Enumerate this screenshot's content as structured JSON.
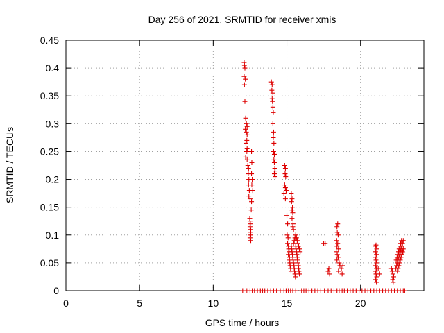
{
  "chart_data": {
    "type": "scatter",
    "title": "Day 256 of 2021, SRMTID for receiver xmis",
    "xlabel": "GPS time / hours",
    "ylabel": "SRMTID / TECUs",
    "xlim": [
      0,
      24.3
    ],
    "ylim": [
      0,
      0.45
    ],
    "x_ticks": [
      0,
      5,
      10,
      15,
      20
    ],
    "x_tick_labels": [
      "0",
      "5",
      "10",
      "15",
      "20"
    ],
    "y_ticks": [
      0,
      0.05,
      0.1,
      0.15,
      0.2,
      0.25,
      0.3,
      0.35,
      0.4,
      0.45
    ],
    "y_tick_labels": [
      "0",
      "0.05",
      "0.1",
      "0.15",
      "0.2",
      "0.25",
      "0.3",
      "0.35",
      "0.4",
      "0.45"
    ],
    "grid": true,
    "marker": "+",
    "series": [
      {
        "name": "SRMTID",
        "color": "#dd0000",
        "points": [
          [
            12.0,
            0.0
          ],
          [
            12.25,
            0.0
          ],
          [
            12.35,
            0.0
          ],
          [
            12.5,
            0.0
          ],
          [
            12.65,
            0.0
          ],
          [
            12.8,
            0.0
          ],
          [
            13.0,
            0.0
          ],
          [
            13.2,
            0.0
          ],
          [
            13.35,
            0.0
          ],
          [
            13.5,
            0.0
          ],
          [
            13.7,
            0.0
          ],
          [
            13.9,
            0.0
          ],
          [
            14.1,
            0.0
          ],
          [
            14.3,
            0.0
          ],
          [
            14.55,
            0.0
          ],
          [
            14.8,
            0.0
          ],
          [
            14.95,
            0.0
          ],
          [
            15.1,
            0.0
          ],
          [
            15.25,
            0.0
          ],
          [
            15.4,
            0.0
          ],
          [
            15.6,
            0.0
          ],
          [
            16.0,
            0.0
          ],
          [
            16.15,
            0.0
          ],
          [
            16.3,
            0.0
          ],
          [
            16.5,
            0.0
          ],
          [
            16.7,
            0.0
          ],
          [
            16.9,
            0.0
          ],
          [
            17.1,
            0.0
          ],
          [
            17.3,
            0.0
          ],
          [
            17.55,
            0.0
          ],
          [
            17.8,
            0.0
          ],
          [
            18.0,
            0.0
          ],
          [
            18.2,
            0.0
          ],
          [
            18.4,
            0.0
          ],
          [
            18.55,
            0.0
          ],
          [
            18.75,
            0.0
          ],
          [
            18.9,
            0.0
          ],
          [
            19.1,
            0.0
          ],
          [
            19.3,
            0.0
          ],
          [
            19.5,
            0.0
          ],
          [
            19.7,
            0.0
          ],
          [
            19.9,
            0.0
          ],
          [
            20.1,
            0.0
          ],
          [
            20.3,
            0.0
          ],
          [
            20.5,
            0.0
          ],
          [
            20.7,
            0.0
          ],
          [
            20.9,
            0.0
          ],
          [
            21.1,
            0.0
          ],
          [
            21.3,
            0.0
          ],
          [
            21.5,
            0.0
          ],
          [
            21.7,
            0.0
          ],
          [
            21.9,
            0.0
          ],
          [
            22.1,
            0.0
          ],
          [
            22.3,
            0.0
          ],
          [
            22.5,
            0.0
          ],
          [
            22.7,
            0.0
          ],
          [
            22.9,
            0.0
          ],
          [
            23.0,
            0.0
          ],
          [
            12.1,
            0.41
          ],
          [
            12.12,
            0.405
          ],
          [
            12.15,
            0.4
          ],
          [
            12.1,
            0.385
          ],
          [
            12.18,
            0.38
          ],
          [
            12.12,
            0.37
          ],
          [
            12.15,
            0.34
          ],
          [
            12.2,
            0.31
          ],
          [
            12.25,
            0.3
          ],
          [
            12.3,
            0.295
          ],
          [
            12.18,
            0.29
          ],
          [
            12.25,
            0.285
          ],
          [
            12.3,
            0.28
          ],
          [
            12.28,
            0.27
          ],
          [
            12.22,
            0.265
          ],
          [
            12.3,
            0.255
          ],
          [
            12.25,
            0.25
          ],
          [
            12.35,
            0.25
          ],
          [
            12.2,
            0.24
          ],
          [
            12.3,
            0.235
          ],
          [
            12.35,
            0.225
          ],
          [
            12.4,
            0.22
          ],
          [
            12.38,
            0.21
          ],
          [
            12.42,
            0.2
          ],
          [
            12.4,
            0.19
          ],
          [
            12.45,
            0.18
          ],
          [
            12.42,
            0.17
          ],
          [
            12.5,
            0.165
          ],
          [
            12.48,
            0.13
          ],
          [
            12.5,
            0.125
          ],
          [
            12.52,
            0.12
          ],
          [
            12.5,
            0.115
          ],
          [
            12.55,
            0.11
          ],
          [
            12.52,
            0.105
          ],
          [
            12.55,
            0.1
          ],
          [
            12.5,
            0.095
          ],
          [
            12.55,
            0.09
          ],
          [
            12.6,
            0.25
          ],
          [
            12.62,
            0.23
          ],
          [
            12.6,
            0.21
          ],
          [
            12.65,
            0.2
          ],
          [
            12.62,
            0.19
          ],
          [
            12.68,
            0.18
          ],
          [
            12.6,
            0.16
          ],
          [
            12.58,
            0.145
          ],
          [
            13.95,
            0.375
          ],
          [
            14.0,
            0.37
          ],
          [
            13.98,
            0.36
          ],
          [
            14.05,
            0.355
          ],
          [
            14.0,
            0.345
          ],
          [
            14.02,
            0.34
          ],
          [
            14.05,
            0.33
          ],
          [
            14.08,
            0.32
          ],
          [
            14.05,
            0.3
          ],
          [
            14.1,
            0.285
          ],
          [
            14.08,
            0.275
          ],
          [
            14.12,
            0.265
          ],
          [
            14.1,
            0.25
          ],
          [
            14.15,
            0.245
          ],
          [
            14.12,
            0.235
          ],
          [
            14.15,
            0.23
          ],
          [
            14.18,
            0.22
          ],
          [
            14.2,
            0.215
          ],
          [
            14.15,
            0.21
          ],
          [
            14.2,
            0.205
          ],
          [
            14.85,
            0.225
          ],
          [
            14.9,
            0.22
          ],
          [
            14.88,
            0.21
          ],
          [
            14.92,
            0.205
          ],
          [
            14.85,
            0.19
          ],
          [
            14.9,
            0.185
          ],
          [
            14.95,
            0.18
          ],
          [
            14.8,
            0.175
          ],
          [
            14.9,
            0.165
          ],
          [
            15.3,
            0.175
          ],
          [
            15.35,
            0.165
          ],
          [
            15.32,
            0.16
          ],
          [
            15.38,
            0.15
          ],
          [
            15.35,
            0.145
          ],
          [
            15.4,
            0.14
          ],
          [
            15.35,
            0.13
          ],
          [
            15.42,
            0.12
          ],
          [
            15.4,
            0.115
          ],
          [
            15.45,
            0.11
          ],
          [
            15.0,
            0.135
          ],
          [
            15.05,
            0.12
          ],
          [
            15.02,
            0.1
          ],
          [
            15.08,
            0.095
          ],
          [
            15.05,
            0.085
          ],
          [
            15.1,
            0.08
          ],
          [
            15.12,
            0.075
          ],
          [
            15.15,
            0.07
          ],
          [
            15.1,
            0.065
          ],
          [
            15.18,
            0.06
          ],
          [
            15.15,
            0.055
          ],
          [
            15.2,
            0.05
          ],
          [
            15.22,
            0.045
          ],
          [
            15.25,
            0.04
          ],
          [
            15.28,
            0.035
          ],
          [
            15.3,
            0.08
          ],
          [
            15.32,
            0.075
          ],
          [
            15.35,
            0.07
          ],
          [
            15.38,
            0.065
          ],
          [
            15.4,
            0.06
          ],
          [
            15.42,
            0.055
          ],
          [
            15.45,
            0.05
          ],
          [
            15.48,
            0.045
          ],
          [
            15.5,
            0.04
          ],
          [
            15.52,
            0.035
          ],
          [
            15.55,
            0.03
          ],
          [
            15.58,
            0.025
          ],
          [
            15.6,
            0.08
          ],
          [
            15.62,
            0.075
          ],
          [
            15.65,
            0.07
          ],
          [
            15.68,
            0.065
          ],
          [
            15.7,
            0.06
          ],
          [
            15.72,
            0.055
          ],
          [
            15.75,
            0.05
          ],
          [
            15.78,
            0.045
          ],
          [
            15.8,
            0.04
          ],
          [
            15.82,
            0.035
          ],
          [
            15.85,
            0.03
          ],
          [
            15.6,
            0.1
          ],
          [
            15.65,
            0.095
          ],
          [
            15.7,
            0.09
          ],
          [
            15.75,
            0.085
          ],
          [
            15.8,
            0.08
          ],
          [
            15.85,
            0.075
          ],
          [
            15.9,
            0.07
          ],
          [
            15.55,
            0.095
          ],
          [
            15.5,
            0.09
          ],
          [
            15.45,
            0.085
          ],
          [
            17.5,
            0.085
          ],
          [
            17.6,
            0.085
          ],
          [
            17.85,
            0.04
          ],
          [
            17.8,
            0.035
          ],
          [
            17.9,
            0.03
          ],
          [
            18.4,
            0.115
          ],
          [
            18.45,
            0.12
          ],
          [
            18.42,
            0.105
          ],
          [
            18.48,
            0.1
          ],
          [
            18.38,
            0.09
          ],
          [
            18.45,
            0.085
          ],
          [
            18.4,
            0.08
          ],
          [
            18.5,
            0.075
          ],
          [
            18.35,
            0.07
          ],
          [
            18.42,
            0.065
          ],
          [
            18.48,
            0.06
          ],
          [
            18.4,
            0.055
          ],
          [
            18.55,
            0.05
          ],
          [
            18.6,
            0.045
          ],
          [
            18.5,
            0.035
          ],
          [
            18.7,
            0.04
          ],
          [
            18.8,
            0.045
          ],
          [
            18.75,
            0.03
          ],
          [
            21.0,
            0.08
          ],
          [
            21.05,
            0.082
          ],
          [
            21.1,
            0.075
          ],
          [
            21.02,
            0.07
          ],
          [
            21.08,
            0.065
          ],
          [
            21.0,
            0.06
          ],
          [
            21.05,
            0.055
          ],
          [
            21.1,
            0.05
          ],
          [
            21.02,
            0.045
          ],
          [
            21.08,
            0.04
          ],
          [
            21.0,
            0.035
          ],
          [
            21.05,
            0.03
          ],
          [
            21.1,
            0.025
          ],
          [
            21.02,
            0.02
          ],
          [
            21.08,
            0.015
          ],
          [
            21.2,
            0.04
          ],
          [
            21.3,
            0.03
          ],
          [
            22.1,
            0.04
          ],
          [
            22.15,
            0.035
          ],
          [
            22.2,
            0.03
          ],
          [
            22.25,
            0.025
          ],
          [
            22.18,
            0.02
          ],
          [
            22.22,
            0.015
          ],
          [
            22.4,
            0.04
          ],
          [
            22.45,
            0.045
          ],
          [
            22.5,
            0.05
          ],
          [
            22.55,
            0.055
          ],
          [
            22.6,
            0.06
          ],
          [
            22.65,
            0.065
          ],
          [
            22.7,
            0.07
          ],
          [
            22.75,
            0.075
          ],
          [
            22.8,
            0.08
          ],
          [
            22.85,
            0.085
          ],
          [
            22.9,
            0.09
          ],
          [
            22.42,
            0.055
          ],
          [
            22.48,
            0.06
          ],
          [
            22.52,
            0.065
          ],
          [
            22.58,
            0.07
          ],
          [
            22.62,
            0.075
          ],
          [
            22.68,
            0.08
          ],
          [
            22.72,
            0.085
          ],
          [
            22.78,
            0.09
          ],
          [
            22.82,
            0.072
          ],
          [
            22.88,
            0.068
          ],
          [
            22.5,
            0.035
          ],
          [
            22.55,
            0.04
          ],
          [
            22.6,
            0.045
          ],
          [
            22.65,
            0.05
          ],
          [
            22.7,
            0.055
          ],
          [
            22.75,
            0.06
          ],
          [
            22.8,
            0.065
          ],
          [
            22.85,
            0.07
          ],
          [
            22.9,
            0.075
          ]
        ]
      }
    ]
  }
}
